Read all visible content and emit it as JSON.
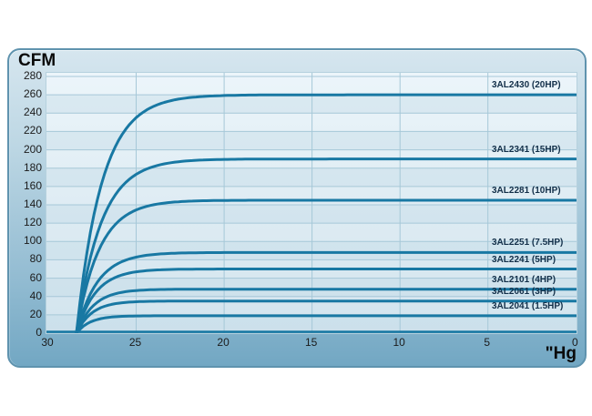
{
  "accent_colors": {
    "curve": "#1878a3",
    "grid_line": "#a6c8d8",
    "stripe_band": "#c3dbe8",
    "panel_border": "#5f93ae",
    "panel_top": "#d6e6ef",
    "panel_bottom": "#72a7c3",
    "plot_background": "#e0edf4",
    "label_text": "#122f49"
  },
  "chart_data": {
    "type": "line",
    "title": "",
    "ylabel": "CFM",
    "xlabel": "\"Hg",
    "grid": true,
    "legend_position": "inline-right",
    "x_axis": {
      "ticks": [
        30,
        25,
        20,
        15,
        10,
        5,
        0
      ],
      "range": [
        30,
        0
      ],
      "reversed": true
    },
    "y_axis": {
      "ticks": [
        0,
        20,
        40,
        60,
        80,
        100,
        120,
        140,
        160,
        180,
        200,
        220,
        240,
        260,
        280
      ],
      "range": [
        0,
        280
      ]
    },
    "curve_model": "cfm = max_cfm * (1 - exp(-(start_hg - hg)/tau_hg)), for hg <= start_hg",
    "series": [
      {
        "label": "3AL2430 (20HP)",
        "model": "3AL2430",
        "hp": "20HP",
        "max_cfm": 260,
        "start_hg": 28.4,
        "tau_hg": 1.45
      },
      {
        "label": "3AL2341 (15HP)",
        "model": "3AL2341",
        "hp": "15HP",
        "max_cfm": 190,
        "start_hg": 28.4,
        "tau_hg": 1.4
      },
      {
        "label": "3AL2281 (10HP)",
        "model": "3AL2281",
        "hp": "10HP",
        "max_cfm": 145,
        "start_hg": 28.4,
        "tau_hg": 1.3
      },
      {
        "label": "3AL2251 (7.5HP)",
        "model": "3AL2251",
        "hp": "7.5HP",
        "max_cfm": 88,
        "start_hg": 28.4,
        "tau_hg": 1.19
      },
      {
        "label": "3AL2241 (5HP)",
        "model": "3AL2241",
        "hp": "5HP",
        "max_cfm": 70,
        "start_hg": 28.4,
        "tau_hg": 1.09
      },
      {
        "label": "3AL2101 (4HP)",
        "model": "3AL2101",
        "hp": "4HP",
        "max_cfm": 48,
        "start_hg": 28.4,
        "tau_hg": 0.98
      },
      {
        "label": "3AL2061 (3HP)",
        "model": "3AL2061",
        "hp": "3HP",
        "max_cfm": 35,
        "start_hg": 28.4,
        "tau_hg": 0.88
      },
      {
        "label": "3AL2041 (1.5HP)",
        "model": "3AL2041",
        "hp": "1.5HP",
        "max_cfm": 19,
        "start_hg": 28.4,
        "tau_hg": 0.78
      }
    ]
  }
}
